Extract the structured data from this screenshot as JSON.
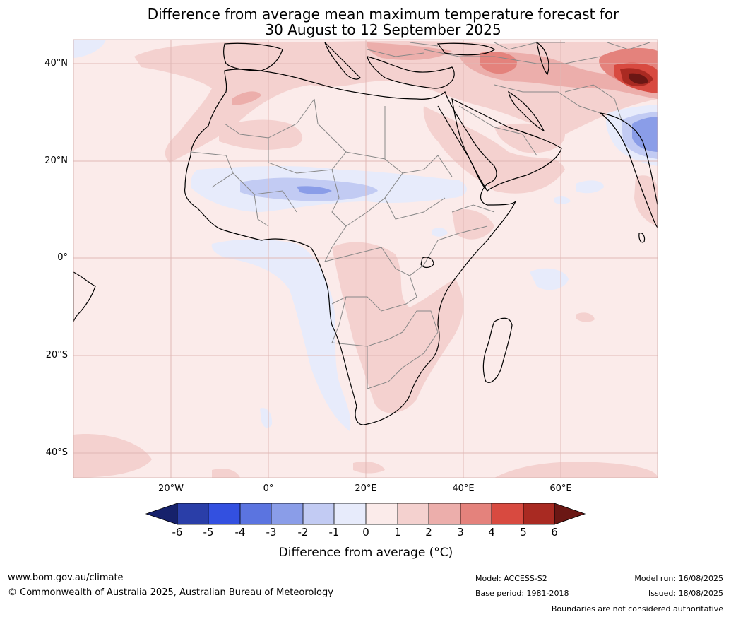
{
  "title": {
    "line1": "Difference from average mean maximum temperature forecast for",
    "line2": "30 August to 12 September 2025"
  },
  "map": {
    "region": "Africa",
    "projection": "equirectangular",
    "lon_range": [
      -40,
      80
    ],
    "lat_range": [
      -45,
      45
    ],
    "lat_labels": [
      "40°N",
      "20°N",
      "0°",
      "20°S",
      "40°S"
    ],
    "lon_labels": [
      "20°W",
      "0°",
      "20°E",
      "40°E",
      "60°E"
    ],
    "gridlines": true
  },
  "colorbar": {
    "ticks": [
      "-6",
      "-5",
      "-4",
      "-3",
      "-2",
      "-1",
      "0",
      "1",
      "2",
      "3",
      "4",
      "5",
      "6"
    ],
    "colors": {
      "below_-6": "#16216b",
      "-6_-5": "#2a3ea8",
      "-5_-4": "#3350e0",
      "-4_-3": "#5b74e0",
      "-3_-2": "#8a9de8",
      "-2_-1": "#c2cbf3",
      "-1_0": "#e7ebfb",
      "0_1": "#fbebea",
      "1_2": "#f4d1cf",
      "2_3": "#ecaeab",
      "3_4": "#e4827c",
      "4_5": "#d84a40",
      "5_6": "#a92a22",
      "above_6": "#6b1714"
    },
    "label": "Difference from average ($^\\circ$C)",
    "label_display": "Difference from average (°C)"
  },
  "footer": {
    "website": "www.bom.gov.au/climate",
    "copyright": "© Commonwealth of Australia 2025, Australian Bureau of Meteorology",
    "model": "Model: ACCESS-S2",
    "base_period": "Base period: 1981-2018",
    "model_run": "Model run: 16/08/2025",
    "issued": "Issued: 18/08/2025",
    "disclaimer": "Boundaries are not considered authoritative"
  }
}
